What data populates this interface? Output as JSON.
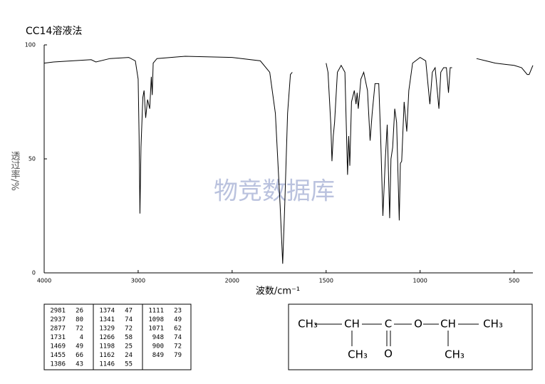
{
  "chart_data": {
    "type": "line",
    "title": "CC14溶液法",
    "xlabel": "波数/cm⁻¹",
    "ylabel": "透过率/%",
    "watermark": "物竞数据库",
    "xlim": [
      4000,
      400
    ],
    "ylim": [
      0,
      100
    ],
    "xticks": [
      4000,
      3000,
      2000,
      1500,
      1000,
      500
    ],
    "yticks": [
      0,
      50,
      100
    ],
    "xscale": "piecewise",
    "color": "#000000",
    "x": [
      4000,
      3900,
      3700,
      3500,
      3450,
      3300,
      3100,
      3030,
      3000,
      2990,
      2981,
      2970,
      2950,
      2937,
      2920,
      2900,
      2877,
      2860,
      2850,
      2840,
      2800,
      2500,
      2000,
      1850,
      1800,
      1770,
      1745,
      1731,
      1720,
      1705,
      1690,
      1680,
      null,
      1500,
      1490,
      1475,
      1469,
      1462,
      1455,
      1440,
      1420,
      1400,
      1386,
      1380,
      1374,
      1365,
      1350,
      1341,
      1335,
      1329,
      1315,
      1300,
      1280,
      1266,
      1255,
      1240,
      1220,
      1210,
      1198,
      1185,
      1175,
      1162,
      1155,
      1146,
      1135,
      1125,
      1111,
      1105,
      1098,
      1085,
      1071,
      1060,
      1040,
      1000,
      970,
      948,
      935,
      920,
      900,
      890,
      875,
      860,
      849,
      840,
      830,
      null,
      700,
      650,
      600,
      550,
      500,
      460,
      430,
      420,
      400
    ],
    "values": [
      92,
      92.5,
      93,
      93.5,
      92.5,
      94,
      94.5,
      93,
      85,
      60,
      26,
      55,
      77,
      80,
      68,
      76,
      72,
      86,
      78,
      92,
      94,
      95,
      94.5,
      93,
      88,
      70,
      30,
      4,
      30,
      70,
      87,
      88,
      null,
      92,
      88,
      65,
      49,
      60,
      66,
      88,
      91,
      88,
      43,
      60,
      47,
      75,
      80,
      74,
      79,
      72,
      85,
      88,
      80,
      58,
      70,
      83,
      83,
      60,
      25,
      50,
      65,
      24,
      50,
      55,
      72,
      66,
      23,
      48,
      49,
      75,
      62,
      80,
      92,
      94.5,
      93,
      74,
      88,
      90,
      72,
      88,
      90,
      90,
      79,
      90,
      90,
      null,
      94,
      93,
      92,
      91.5,
      91,
      90,
      87,
      87,
      91
    ]
  },
  "peaks": [
    [
      2981,
      26
    ],
    [
      2937,
      80
    ],
    [
      2877,
      72
    ],
    [
      1731,
      4
    ],
    [
      1469,
      49
    ],
    [
      1455,
      66
    ],
    [
      1386,
      43
    ],
    [
      1374,
      47
    ],
    [
      1341,
      74
    ],
    [
      1329,
      72
    ],
    [
      1266,
      58
    ],
    [
      1198,
      25
    ],
    [
      1162,
      24
    ],
    [
      1146,
      55
    ],
    [
      1111,
      23
    ],
    [
      1098,
      49
    ],
    [
      1071,
      62
    ],
    [
      948,
      74
    ],
    [
      900,
      72
    ],
    [
      849,
      79
    ]
  ],
  "structure": {
    "top": [
      "CH₃",
      "CH",
      "C",
      "O",
      "CH",
      "CH₃"
    ],
    "bottom": [
      "CH₃",
      "O",
      "CH₃"
    ]
  }
}
